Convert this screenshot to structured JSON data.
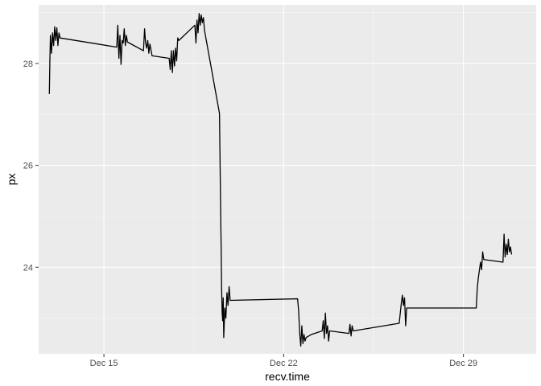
{
  "chart_data": {
    "type": "line",
    "title": "",
    "xlabel": "recv.time",
    "ylabel": "px",
    "x_ticks": [
      "Dec 15",
      "Dec 22",
      "Dec 29"
    ],
    "x_tick_values": [
      "2023-12-15",
      "2023-12-22",
      "2023-12-29"
    ],
    "y_ticks": [
      "24",
      "26",
      "28"
    ],
    "y_tick_values": [
      24,
      26,
      28
    ],
    "xlim": [
      "2023-12-12T11:00",
      "2023-12-31T20:00"
    ],
    "ylim": [
      22.3,
      29.15
    ],
    "grid": true,
    "legend": "none",
    "colors": {
      "panel": "#ebebeb",
      "grid_major": "#ffffff",
      "grid_minor": "#f5f5f5",
      "line": "#000000"
    },
    "series": [
      {
        "points": [
          [
            "2023-12-12T21:00",
            27.4
          ],
          [
            "2023-12-12T21:30",
            28.05
          ],
          [
            "2023-12-12T22:00",
            28.55
          ],
          [
            "2023-12-12T23:00",
            28.2
          ],
          [
            "2023-12-13T00:00",
            28.6
          ],
          [
            "2023-12-13T01:00",
            28.35
          ],
          [
            "2023-12-13T02:00",
            28.72
          ],
          [
            "2023-12-13T03:00",
            28.45
          ],
          [
            "2023-12-13T04:00",
            28.7
          ],
          [
            "2023-12-13T05:00",
            28.35
          ],
          [
            "2023-12-13T06:00",
            28.6
          ],
          [
            "2023-12-13T07:00",
            28.5
          ],
          [
            "2023-12-15T12:00",
            28.32
          ],
          [
            "2023-12-15T13:00",
            28.75
          ],
          [
            "2023-12-15T14:00",
            28.1
          ],
          [
            "2023-12-15T15:00",
            28.55
          ],
          [
            "2023-12-15T16:00",
            27.98
          ],
          [
            "2023-12-15T17:00",
            28.45
          ],
          [
            "2023-12-15T18:00",
            28.4
          ],
          [
            "2023-12-15T19:00",
            28.68
          ],
          [
            "2023-12-15T20:00",
            28.35
          ],
          [
            "2023-12-15T21:00",
            28.55
          ],
          [
            "2023-12-15T22:00",
            28.42
          ],
          [
            "2023-12-16T13:00",
            28.25
          ],
          [
            "2023-12-16T14:00",
            28.68
          ],
          [
            "2023-12-16T15:00",
            28.4
          ],
          [
            "2023-12-16T16:00",
            28.3
          ],
          [
            "2023-12-16T17:00",
            28.45
          ],
          [
            "2023-12-16T18:00",
            28.2
          ],
          [
            "2023-12-16T19:00",
            28.38
          ],
          [
            "2023-12-16T21:00",
            28.15
          ],
          [
            "2023-12-17T13:00",
            28.1
          ],
          [
            "2023-12-17T14:00",
            27.88
          ],
          [
            "2023-12-17T15:00",
            28.25
          ],
          [
            "2023-12-17T16:00",
            27.82
          ],
          [
            "2023-12-17T17:00",
            28.25
          ],
          [
            "2023-12-17T18:00",
            27.95
          ],
          [
            "2023-12-17T19:00",
            28.3
          ],
          [
            "2023-12-17T20:00",
            28.05
          ],
          [
            "2023-12-17T21:00",
            28.5
          ],
          [
            "2023-12-17T22:00",
            28.45
          ],
          [
            "2023-12-18T13:00",
            28.75
          ],
          [
            "2023-12-18T14:00",
            28.4
          ],
          [
            "2023-12-18T15:00",
            28.85
          ],
          [
            "2023-12-18T16:00",
            28.6
          ],
          [
            "2023-12-18T17:00",
            28.98
          ],
          [
            "2023-12-18T18:00",
            28.75
          ],
          [
            "2023-12-18T19:00",
            28.95
          ],
          [
            "2023-12-18T20:00",
            28.8
          ],
          [
            "2023-12-18T21:00",
            28.9
          ],
          [
            "2023-12-18T22:00",
            28.65
          ],
          [
            "2023-12-19T12:00",
            27.02
          ],
          [
            "2023-12-19T13:00",
            25.3
          ],
          [
            "2023-12-19T13:30",
            24.5
          ],
          [
            "2023-12-19T14:00",
            23.6
          ],
          [
            "2023-12-19T14:30",
            23.1
          ],
          [
            "2023-12-19T15:00",
            22.95
          ],
          [
            "2023-12-19T15:30",
            23.4
          ],
          [
            "2023-12-19T16:00",
            22.62
          ],
          [
            "2023-12-19T17:00",
            23.2
          ],
          [
            "2023-12-19T18:00",
            23.0
          ],
          [
            "2023-12-19T19:00",
            23.5
          ],
          [
            "2023-12-19T20:00",
            23.25
          ],
          [
            "2023-12-19T21:00",
            23.62
          ],
          [
            "2023-12-19T22:00",
            23.35
          ],
          [
            "2023-12-22T13:00",
            23.38
          ],
          [
            "2023-12-22T14:00",
            23.15
          ],
          [
            "2023-12-22T15:00",
            22.7
          ],
          [
            "2023-12-22T16:00",
            22.45
          ],
          [
            "2023-12-22T17:00",
            22.85
          ],
          [
            "2023-12-22T18:00",
            22.5
          ],
          [
            "2023-12-22T19:00",
            22.68
          ],
          [
            "2023-12-22T20:00",
            22.55
          ],
          [
            "2023-12-22T21:00",
            22.62
          ],
          [
            "2023-12-23T02:00",
            22.68
          ],
          [
            "2023-12-23T12:00",
            22.75
          ],
          [
            "2023-12-23T13:00",
            22.95
          ],
          [
            "2023-12-23T14:00",
            22.6
          ],
          [
            "2023-12-23T15:00",
            23.1
          ],
          [
            "2023-12-23T16:00",
            22.7
          ],
          [
            "2023-12-23T17:00",
            22.85
          ],
          [
            "2023-12-23T18:00",
            22.55
          ],
          [
            "2023-12-23T19:00",
            22.75
          ],
          [
            "2023-12-24T13:00",
            22.7
          ],
          [
            "2023-12-24T14:00",
            22.88
          ],
          [
            "2023-12-24T15:00",
            22.65
          ],
          [
            "2023-12-24T16:00",
            22.85
          ],
          [
            "2023-12-24T17:00",
            22.75
          ],
          [
            "2023-12-26T12:00",
            22.9
          ],
          [
            "2023-12-26T13:00",
            23.1
          ],
          [
            "2023-12-26T14:00",
            23.3
          ],
          [
            "2023-12-26T15:00",
            23.45
          ],
          [
            "2023-12-26T16:00",
            23.25
          ],
          [
            "2023-12-26T17:00",
            23.4
          ],
          [
            "2023-12-26T18:00",
            22.85
          ],
          [
            "2023-12-26T19:00",
            23.2
          ],
          [
            "2023-12-29T12:00",
            23.2
          ],
          [
            "2023-12-29T13:00",
            23.6
          ],
          [
            "2023-12-29T14:00",
            23.8
          ],
          [
            "2023-12-29T15:00",
            23.95
          ],
          [
            "2023-12-29T16:00",
            24.1
          ],
          [
            "2023-12-29T17:00",
            23.95
          ],
          [
            "2023-12-29T18:00",
            24.3
          ],
          [
            "2023-12-29T19:00",
            24.15
          ],
          [
            "2023-12-30T13:00",
            24.1
          ],
          [
            "2023-12-30T14:00",
            24.65
          ],
          [
            "2023-12-30T15:00",
            24.2
          ],
          [
            "2023-12-30T16:00",
            24.45
          ],
          [
            "2023-12-30T17:00",
            24.25
          ],
          [
            "2023-12-30T18:00",
            24.55
          ],
          [
            "2023-12-30T19:00",
            24.3
          ],
          [
            "2023-12-30T20:00",
            24.4
          ],
          [
            "2023-12-30T21:00",
            24.25
          ]
        ]
      }
    ]
  }
}
